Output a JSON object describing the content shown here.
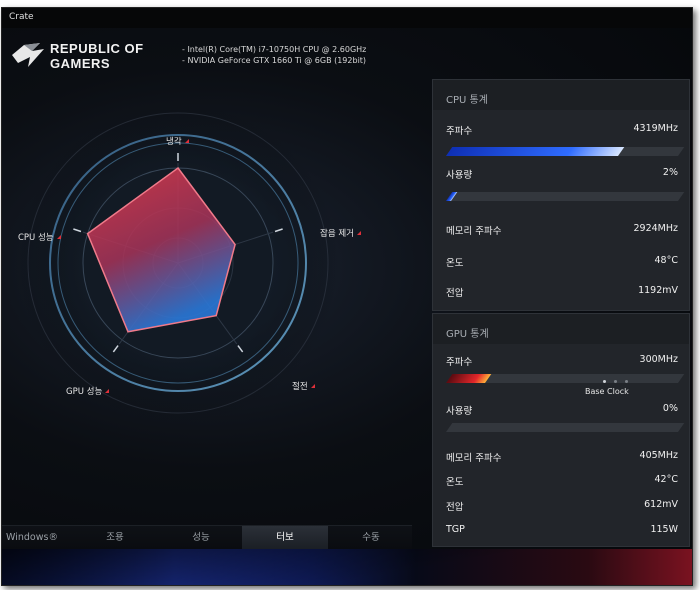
{
  "window": {
    "title": "Crate"
  },
  "brand": {
    "line1": "REPUBLIC OF",
    "line2": "GAMERS"
  },
  "system": {
    "cpu": "Intel(R) Core(TM) i7-10750H CPU @ 2.60GHz",
    "gpu": "NVIDIA GeForce GTX 1660 Ti @ 6GB (192bit)"
  },
  "radar": {
    "axes": [
      {
        "key": "cooling",
        "label": "냉각",
        "level": 0.95
      },
      {
        "key": "noise",
        "label": "잡음 제거",
        "level": 0.6
      },
      {
        "key": "power_saving",
        "label": "절전",
        "level": 0.65
      },
      {
        "key": "gpu_perf",
        "label": "GPU 성능",
        "level": 0.85
      },
      {
        "key": "cpu_perf",
        "label": "CPU 성능",
        "level": 0.95
      }
    ]
  },
  "modes": [
    {
      "label": "Windows®",
      "active": false
    },
    {
      "label": "조용",
      "active": false
    },
    {
      "label": "성능",
      "active": false
    },
    {
      "label": "터보",
      "active": true
    },
    {
      "label": "수동",
      "active": false
    }
  ],
  "cpu_stats": {
    "title": "CPU 통계",
    "freq": {
      "label": "주파수",
      "value": "4319MHz",
      "bar": 0.74
    },
    "usage": {
      "label": "사용량",
      "value": "2%",
      "bar": 0.02
    },
    "mem_freq": {
      "label": "메모리 주파수",
      "value": "2924MHz"
    },
    "temp": {
      "label": "온도",
      "value": "48°C"
    },
    "voltage": {
      "label": "전압",
      "value": "1192mV"
    }
  },
  "gpu_stats": {
    "title": "GPU 통계",
    "freq": {
      "label": "주파수",
      "value": "300MHz",
      "bar": 0.17,
      "base_clock_label": "Base Clock"
    },
    "usage": {
      "label": "사용량",
      "value": "0%",
      "bar": 0.0
    },
    "mem_freq": {
      "label": "메모리 주파수",
      "value": "405MHz"
    },
    "temp": {
      "label": "온도",
      "value": "42°C"
    },
    "voltage": {
      "label": "전압",
      "value": "612mV"
    },
    "tgp": {
      "label": "TGP",
      "value": "115W"
    }
  },
  "colors": {
    "accent_red": "#e0303a",
    "accent_blue": "#2f6cff",
    "panel_bg": "#22252a"
  }
}
